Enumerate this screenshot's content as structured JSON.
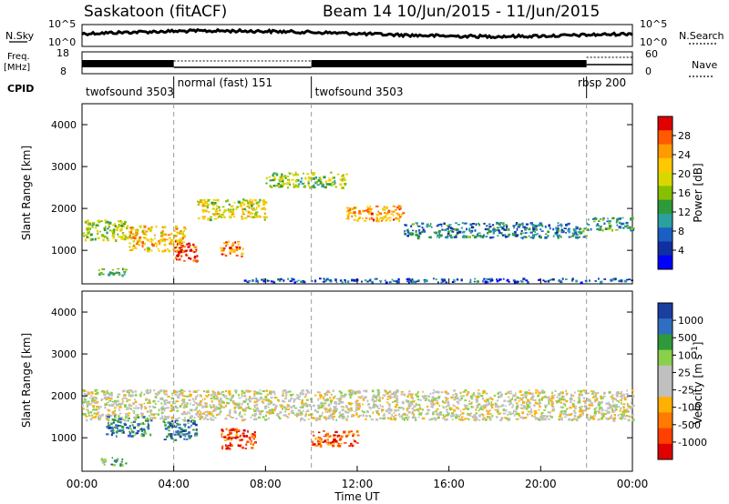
{
  "header": {
    "site": "Saskatoon (fitACF)",
    "beam_and_dates": "Beam 14   10/Jun/2015 - 11/Jun/2015"
  },
  "top_panels": {
    "nsky_label": "N.Sky",
    "nsky_ticks": [
      "10^5",
      "10^0"
    ],
    "nsearch_label": "N.Search",
    "nsearch_ticks": [
      "10^5",
      "10^0"
    ],
    "freq_label_line1": "Freq.",
    "freq_label_line2": "[MHz]",
    "freq_ticks": [
      "18",
      "8"
    ],
    "nave_label": "Nave",
    "nave_ticks": [
      "60",
      "0"
    ],
    "cpid_label": "CPID",
    "cpid_segments": [
      {
        "label": "twofsound 3503",
        "start_h": 0,
        "end_h": 4
      },
      {
        "label": "normal (fast) 151",
        "start_h": 4,
        "end_h": 10
      },
      {
        "label": "twofsound 3503",
        "start_h": 10,
        "end_h": 22
      },
      {
        "label": "rbsp 200",
        "start_h": 22,
        "end_h": 24
      }
    ]
  },
  "chart_data": [
    {
      "type": "heatmap",
      "title": "",
      "ylabel": "Slant Range [km]",
      "xlabel": "",
      "ylim": [
        200,
        4500
      ],
      "xlim_hours": [
        0,
        24
      ],
      "colorbar_label": "Power [dB]",
      "colorbar_ticks": [
        "28",
        "24",
        "20",
        "16",
        "12",
        "8",
        "4"
      ],
      "colorbar_colors": [
        "#e00000",
        "#ff5a00",
        "#ff9a00",
        "#ffc800",
        "#d8d800",
        "#88c000",
        "#2e9a3a",
        "#2aa0a0",
        "#1b5fc4",
        "#1030a0",
        "#0000ff"
      ],
      "regions": [
        {
          "t_start": 0.0,
          "t_end": 2.0,
          "r_center": 1500,
          "r_width": 400,
          "level": 0.55
        },
        {
          "t_start": 2.0,
          "t_end": 4.5,
          "r_center": 1300,
          "r_width": 500,
          "level": 0.7
        },
        {
          "t_start": 4.0,
          "t_end": 5.0,
          "r_center": 1000,
          "r_width": 400,
          "level": 0.95
        },
        {
          "t_start": 5.0,
          "t_end": 8.0,
          "r_center": 2000,
          "r_width": 400,
          "level": 0.6
        },
        {
          "t_start": 8.0,
          "t_end": 11.5,
          "r_center": 2700,
          "r_width": 300,
          "level": 0.5
        },
        {
          "t_start": 11.5,
          "t_end": 14.0,
          "r_center": 1900,
          "r_width": 300,
          "level": 0.75
        },
        {
          "t_start": 14.0,
          "t_end": 22.0,
          "r_center": 1500,
          "r_width": 300,
          "level": 0.3
        },
        {
          "t_start": 22.0,
          "t_end": 24.0,
          "r_center": 1650,
          "r_width": 250,
          "level": 0.35
        },
        {
          "t_start": 0.7,
          "t_end": 1.9,
          "r_center": 500,
          "r_width": 150,
          "level": 0.4
        },
        {
          "t_start": 6.0,
          "t_end": 7.0,
          "r_center": 1050,
          "r_width": 300,
          "level": 0.8
        },
        {
          "t_start": 7.0,
          "t_end": 24.0,
          "r_center": 300,
          "r_width": 80,
          "level": 0.2
        }
      ]
    },
    {
      "type": "heatmap",
      "title": "",
      "ylabel": "Slant Range [km]",
      "xlabel": "Time UT",
      "ylim": [
        200,
        4500
      ],
      "xlim_hours": [
        0,
        24
      ],
      "x_ticks": [
        "00:00",
        "04:00",
        "08:00",
        "12:00",
        "16:00",
        "20:00",
        "00:00"
      ],
      "colorbar_label": "Velocity [m s",
      "colorbar_label_sup": "-1",
      "colorbar_label_close": "]",
      "colorbar_ticks": [
        "1000",
        "500",
        "100",
        "25",
        "-25",
        "-100",
        "-500",
        "-1000"
      ],
      "colorbar_colors": [
        "#1a3fa0",
        "#2f6fc0",
        "#2e9a3a",
        "#8ad04a",
        "#c0c0c0",
        "#c0c0c0",
        "#ffb000",
        "#ff7a00",
        "#ff4000",
        "#e00000"
      ],
      "regions": [
        {
          "t_start": 0.0,
          "t_end": 24.0,
          "r_center": 1800,
          "r_width": 600,
          "level": 0.5
        },
        {
          "t_start": 1.0,
          "t_end": 3.0,
          "r_center": 1300,
          "r_width": 400,
          "level": 0.2
        },
        {
          "t_start": 3.5,
          "t_end": 5.0,
          "r_center": 1200,
          "r_width": 400,
          "level": 0.15
        },
        {
          "t_start": 6.0,
          "t_end": 7.5,
          "r_center": 1000,
          "r_width": 400,
          "level": 0.85
        },
        {
          "t_start": 0.8,
          "t_end": 1.9,
          "r_center": 450,
          "r_width": 150,
          "level": 0.25
        },
        {
          "t_start": 10.0,
          "t_end": 12.0,
          "r_center": 1000,
          "r_width": 300,
          "level": 0.8
        }
      ]
    }
  ]
}
